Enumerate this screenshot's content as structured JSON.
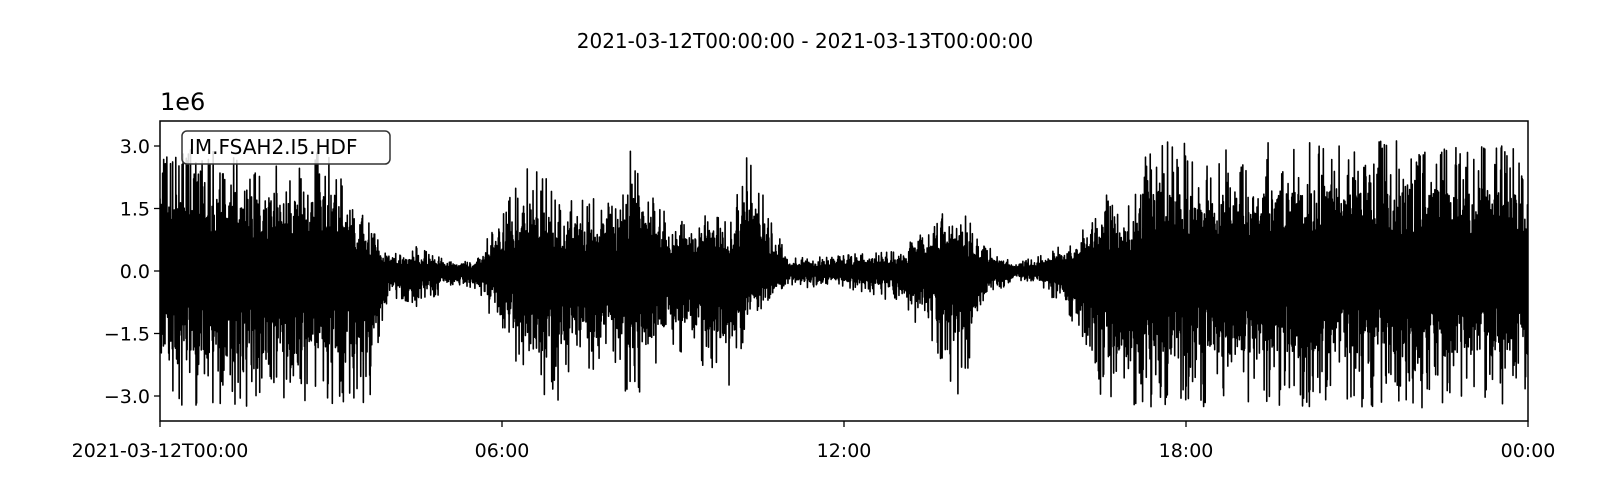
{
  "chart_data": {
    "type": "line",
    "title": "2021-03-12T00:00:00  -  2021-03-13T00:00:00",
    "xlabel": "",
    "ylabel": "",
    "y_offset_label": "1e6",
    "legend": "IM.FSAH2.I5.HDF",
    "legend_placement": "top-left",
    "grid": false,
    "xlim": [
      "2021-03-12T00:00",
      "2021-03-13T00:00"
    ],
    "ylim": [
      -3.6,
      3.6
    ],
    "y_units": "1e6 counts",
    "xticks": [
      {
        "value": "2021-03-12T00:00",
        "label": "2021-03-12T00:00"
      },
      {
        "value": "2021-03-12T06:00",
        "label": "06:00"
      },
      {
        "value": "2021-03-12T12:00",
        "label": "12:00"
      },
      {
        "value": "2021-03-12T18:00",
        "label": "18:00"
      },
      {
        "value": "2021-03-13T00:00",
        "label": "00:00"
      }
    ],
    "yticks": [
      {
        "value": 3.0,
        "label": "3.0"
      },
      {
        "value": 1.5,
        "label": "1.5"
      },
      {
        "value": 0.0,
        "label": "0.0"
      },
      {
        "value": -1.5,
        "label": "−1.5"
      },
      {
        "value": -3.0,
        "label": "−3.0"
      }
    ],
    "series": [
      {
        "color": "#000000",
        "envelope": [
          {
            "t": "2021-03-12T00:00",
            "max": 3.0,
            "min": -3.2
          },
          {
            "t": "2021-03-12T01:00",
            "max": 3.0,
            "min": -3.3
          },
          {
            "t": "2021-03-12T02:00",
            "max": 2.6,
            "min": -3.2
          },
          {
            "t": "2021-03-12T03:00",
            "max": 3.0,
            "min": -3.2
          },
          {
            "t": "2021-03-12T03:40",
            "max": 1.2,
            "min": -3.2
          },
          {
            "t": "2021-03-12T04:00",
            "max": 0.4,
            "min": -0.6
          },
          {
            "t": "2021-03-12T04:30",
            "max": 0.6,
            "min": -0.9
          },
          {
            "t": "2021-03-12T05:00",
            "max": 0.3,
            "min": -0.5
          },
          {
            "t": "2021-03-12T05:30",
            "max": 0.2,
            "min": -0.4
          },
          {
            "t": "2021-03-12T06:00",
            "max": 1.5,
            "min": -1.6
          },
          {
            "t": "2021-03-12T06:30",
            "max": 2.6,
            "min": -3.0
          },
          {
            "t": "2021-03-12T07:00",
            "max": 2.0,
            "min": -3.2
          },
          {
            "t": "2021-03-12T07:30",
            "max": 1.8,
            "min": -2.4
          },
          {
            "t": "2021-03-12T08:00",
            "max": 1.6,
            "min": -2.2
          },
          {
            "t": "2021-03-12T08:15",
            "max": 3.0,
            "min": -3.3
          },
          {
            "t": "2021-03-12T09:00",
            "max": 1.2,
            "min": -1.8
          },
          {
            "t": "2021-03-12T09:30",
            "max": 1.5,
            "min": -2.3
          },
          {
            "t": "2021-03-12T10:00",
            "max": 1.2,
            "min": -2.8
          },
          {
            "t": "2021-03-12T10:20",
            "max": 3.0,
            "min": -1.2
          },
          {
            "t": "2021-03-12T11:00",
            "max": 0.3,
            "min": -0.4
          },
          {
            "t": "2021-03-12T12:00",
            "max": 0.4,
            "min": -0.4
          },
          {
            "t": "2021-03-12T13:00",
            "max": 0.5,
            "min": -0.8
          },
          {
            "t": "2021-03-12T13:40",
            "max": 1.4,
            "min": -2.1
          },
          {
            "t": "2021-03-12T14:00",
            "max": 1.7,
            "min": -3.2
          },
          {
            "t": "2021-03-12T14:30",
            "max": 0.6,
            "min": -0.8
          },
          {
            "t": "2021-03-12T15:00",
            "max": 0.2,
            "min": -0.2
          },
          {
            "t": "2021-03-12T15:30",
            "max": 0.4,
            "min": -0.4
          },
          {
            "t": "2021-03-12T16:00",
            "max": 0.8,
            "min": -1.3
          },
          {
            "t": "2021-03-12T16:30",
            "max": 1.9,
            "min": -3.0
          },
          {
            "t": "2021-03-12T17:00",
            "max": 1.6,
            "min": -3.2
          },
          {
            "t": "2021-03-12T17:20",
            "max": 3.1,
            "min": -3.3
          },
          {
            "t": "2021-03-12T18:00",
            "max": 3.1,
            "min": -3.3
          },
          {
            "t": "2021-03-12T19:00",
            "max": 3.1,
            "min": -3.3
          },
          {
            "t": "2021-03-12T20:00",
            "max": 3.1,
            "min": -3.3
          },
          {
            "t": "2021-03-12T21:00",
            "max": 3.1,
            "min": -3.3
          },
          {
            "t": "2021-03-12T22:00",
            "max": 3.2,
            "min": -3.3
          },
          {
            "t": "2021-03-12T23:00",
            "max": 3.1,
            "min": -3.3
          },
          {
            "t": "2021-03-13T00:00",
            "max": 3.1,
            "min": -3.3
          }
        ]
      }
    ]
  }
}
